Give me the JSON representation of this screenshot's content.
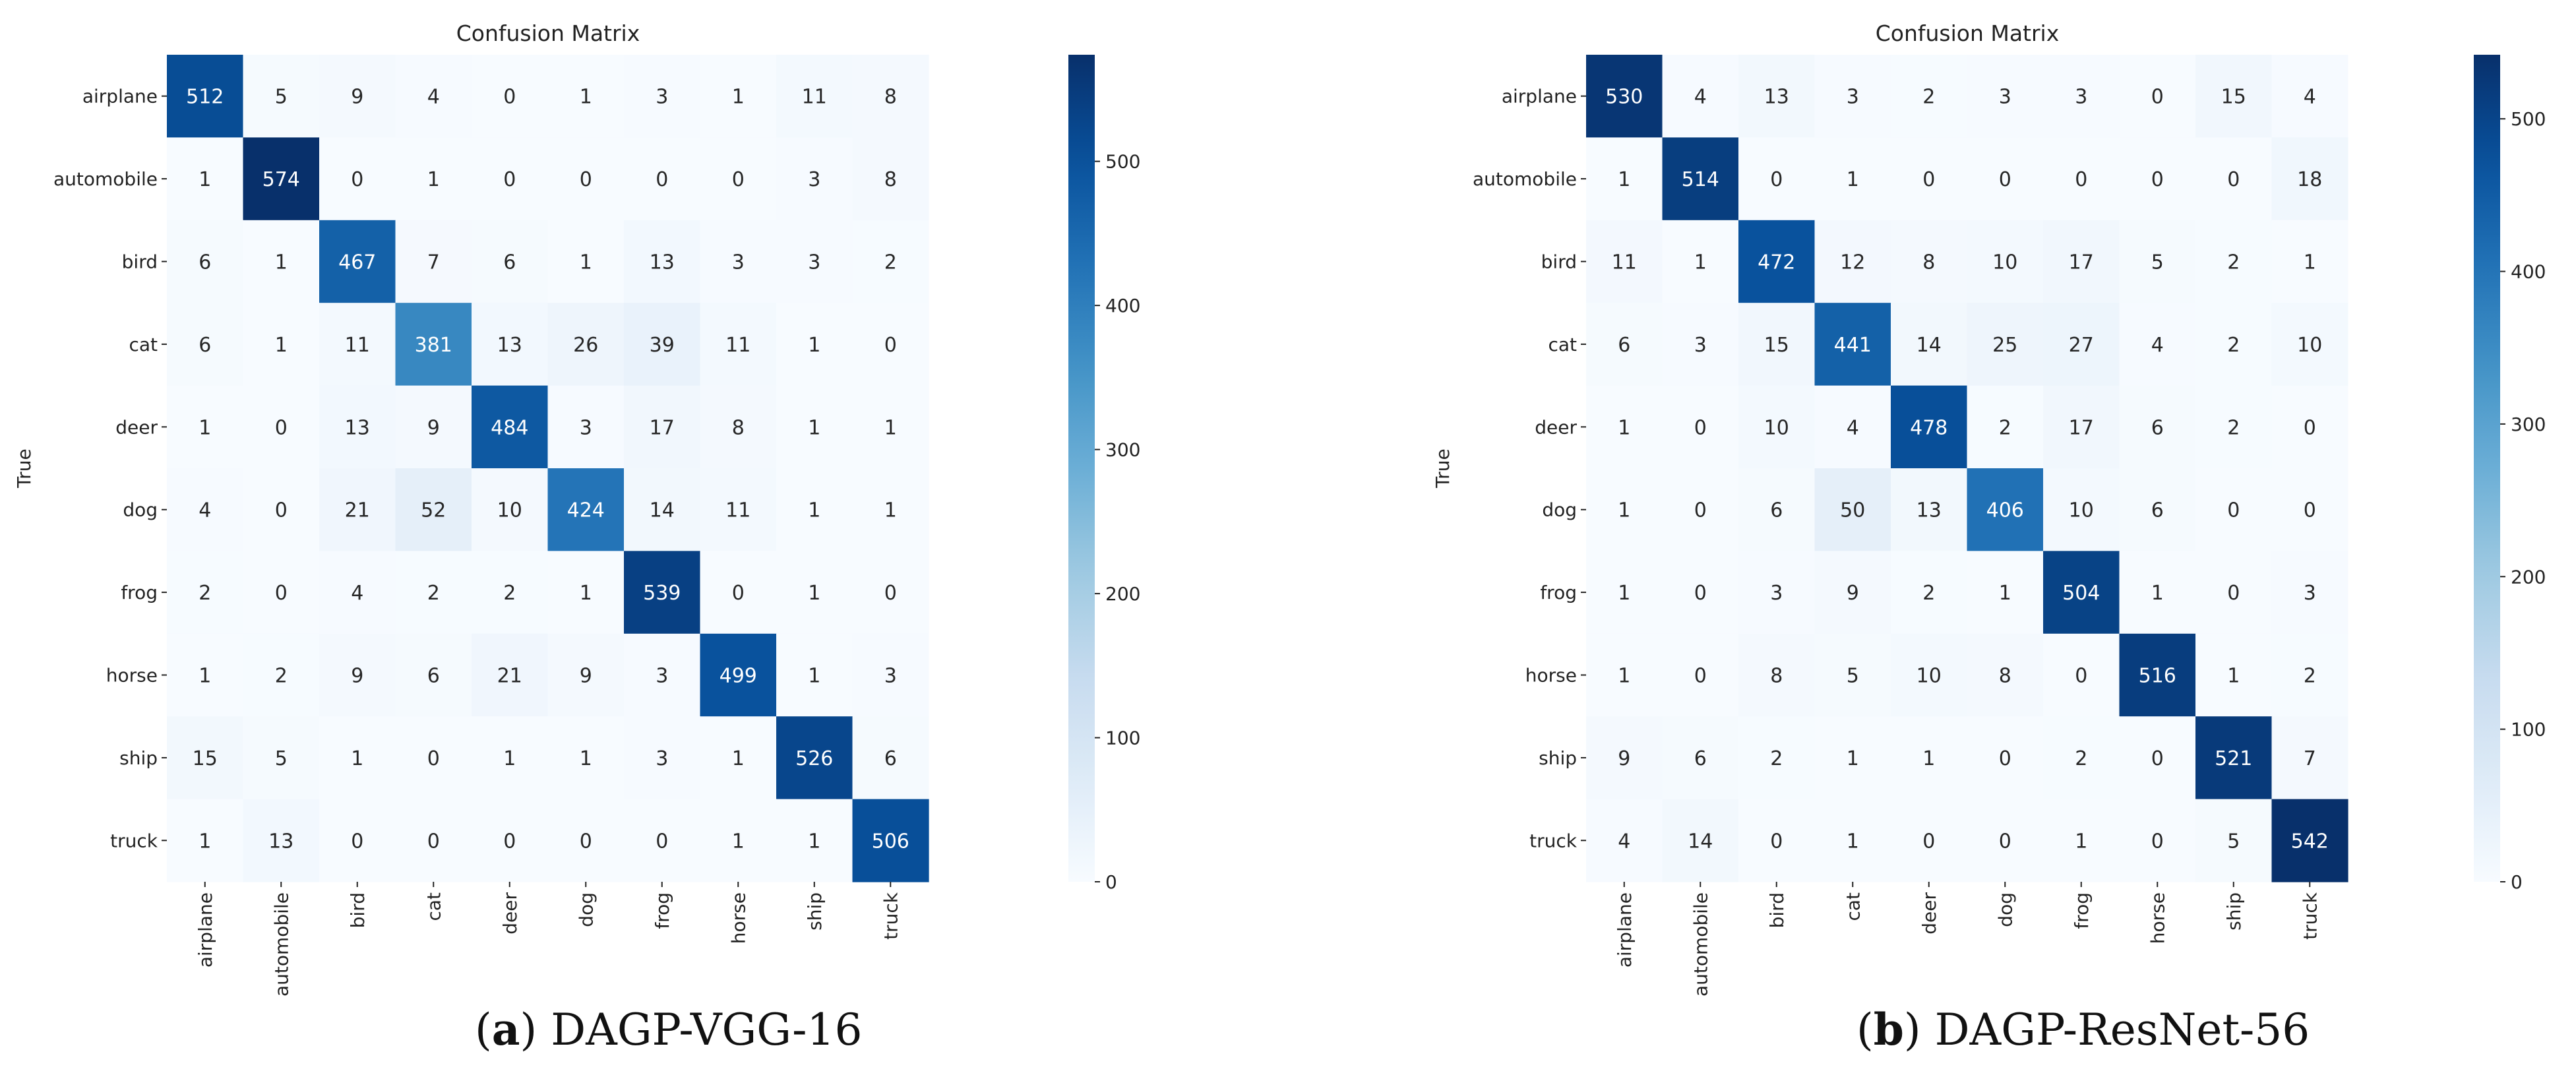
{
  "chart_data": [
    {
      "type": "heatmap",
      "title": "Confusion Matrix",
      "ylabel": "True",
      "xlabel": "",
      "caption_letter": "a",
      "caption_text": "DAGP-VGG-16",
      "labels": [
        "airplane",
        "automobile",
        "bird",
        "cat",
        "deer",
        "dog",
        "frog",
        "horse",
        "ship",
        "truck"
      ],
      "colorbar": {
        "min": 0,
        "max": 574,
        "ticks": [
          0,
          100,
          200,
          300,
          400,
          500
        ]
      },
      "matrix": [
        [
          512,
          5,
          9,
          4,
          0,
          1,
          3,
          1,
          11,
          8
        ],
        [
          1,
          574,
          0,
          1,
          0,
          0,
          0,
          0,
          3,
          8
        ],
        [
          6,
          1,
          467,
          7,
          6,
          1,
          13,
          3,
          3,
          2
        ],
        [
          6,
          1,
          11,
          381,
          13,
          26,
          39,
          11,
          1,
          0
        ],
        [
          1,
          0,
          13,
          9,
          484,
          3,
          17,
          8,
          1,
          1
        ],
        [
          4,
          0,
          21,
          52,
          10,
          424,
          14,
          11,
          1,
          1
        ],
        [
          2,
          0,
          4,
          2,
          2,
          1,
          539,
          0,
          1,
          0
        ],
        [
          1,
          2,
          9,
          6,
          21,
          9,
          3,
          499,
          1,
          3
        ],
        [
          15,
          5,
          1,
          0,
          1,
          1,
          3,
          1,
          526,
          6
        ],
        [
          1,
          13,
          0,
          0,
          0,
          0,
          0,
          1,
          1,
          506
        ]
      ]
    },
    {
      "type": "heatmap",
      "title": "Confusion Matrix",
      "ylabel": "True",
      "xlabel": "",
      "caption_letter": "b",
      "caption_text": "DAGP-ResNet-56",
      "labels": [
        "airplane",
        "automobile",
        "bird",
        "cat",
        "deer",
        "dog",
        "frog",
        "horse",
        "ship",
        "truck"
      ],
      "colorbar": {
        "min": 0,
        "max": 542,
        "ticks": [
          0,
          100,
          200,
          300,
          400,
          500
        ]
      },
      "matrix": [
        [
          530,
          4,
          13,
          3,
          2,
          3,
          3,
          0,
          15,
          4
        ],
        [
          1,
          514,
          0,
          1,
          0,
          0,
          0,
          0,
          0,
          18
        ],
        [
          11,
          1,
          472,
          12,
          8,
          10,
          17,
          5,
          2,
          1
        ],
        [
          6,
          3,
          15,
          441,
          14,
          25,
          27,
          4,
          2,
          10
        ],
        [
          1,
          0,
          10,
          4,
          478,
          2,
          17,
          6,
          2,
          0
        ],
        [
          1,
          0,
          6,
          50,
          13,
          406,
          10,
          6,
          0,
          0
        ],
        [
          1,
          0,
          3,
          9,
          2,
          1,
          504,
          1,
          0,
          3
        ],
        [
          1,
          0,
          8,
          5,
          10,
          8,
          0,
          516,
          1,
          2
        ],
        [
          9,
          6,
          2,
          1,
          1,
          0,
          2,
          0,
          521,
          7
        ],
        [
          4,
          14,
          0,
          1,
          0,
          0,
          1,
          0,
          5,
          542
        ]
      ]
    }
  ]
}
